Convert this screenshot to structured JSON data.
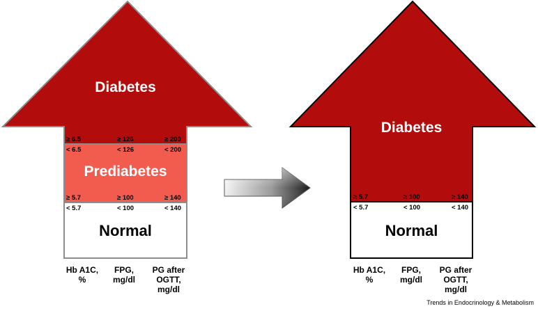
{
  "left_panel": {
    "diabetes_label": "Diabetes",
    "prediabetes_label": "Prediabetes",
    "normal_label": "Normal",
    "thresholds_diabetes": [
      "≥ 6.5",
      "≥ 126",
      "≥ 200"
    ],
    "thresholds_upper_prediabetes": [
      "< 6.5",
      "< 126",
      "< 200"
    ],
    "thresholds_lower_prediabetes": [
      "≥ 5.7",
      "≥ 100",
      "≥ 140"
    ],
    "thresholds_normal": [
      "< 5.7",
      "< 100",
      "< 140"
    ],
    "axis_labels": [
      "Hb A1C,\n%",
      "FPG,\nmg/dl",
      "PG after\nOGTT,\nmg/dl"
    ]
  },
  "right_panel": {
    "diabetes_label": "Diabetes",
    "normal_label": "Normal",
    "thresholds_diabetes": [
      "≥ 5.7",
      "≥ 100",
      "≥ 140"
    ],
    "thresholds_normal": [
      "< 5.7",
      "< 100",
      "< 140"
    ],
    "axis_labels": [
      "Hb A1C,\n%",
      "FPG,\nmg/dl",
      "PG after\nOGTT,\nmg/dl"
    ]
  },
  "credit": "Trends in Endocrinology & Metabolism",
  "colors": {
    "diabetes": "#b30c0c",
    "prediabetes": "#f25c4f",
    "normal": "#ffffff",
    "left_border": "#8c8c8c",
    "right_border": "#000000"
  }
}
